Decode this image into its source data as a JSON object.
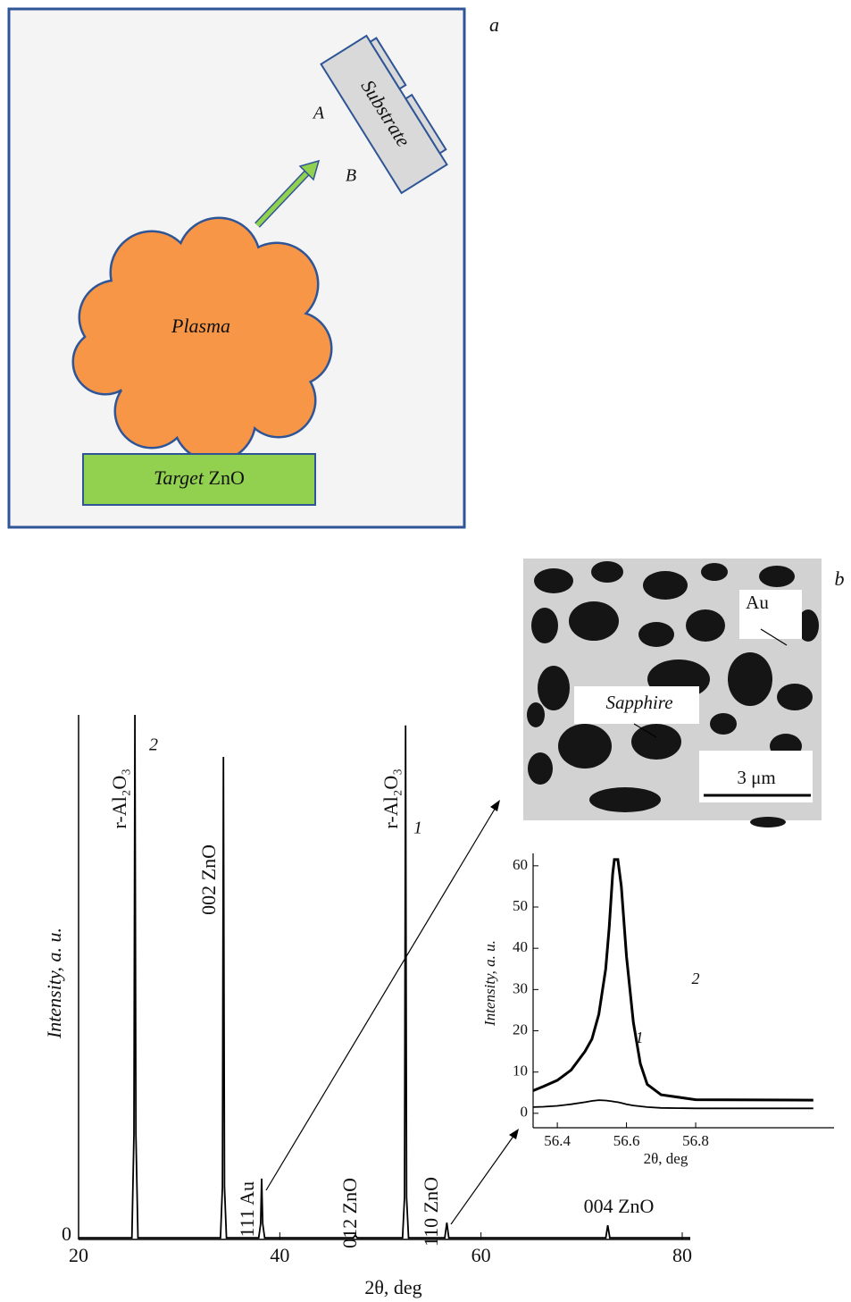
{
  "panel_a": {
    "label": "a",
    "substrate": "Substrate",
    "electrode_a": "A",
    "electrode_b": "B",
    "plasma": "Plasma",
    "target_word": "Target",
    "target_material": "ZnO"
  },
  "panel_b": {
    "label": "b",
    "au": "Au",
    "sapphire": "Sapphire",
    "scale": "3 μm"
  },
  "chart_data": [
    {
      "type": "line",
      "xlabel": "2θ, deg",
      "ylabel": "Intensity, a. u.",
      "x": [
        20,
        25.3,
        25.5,
        25.6,
        25.7,
        25.9,
        34.1,
        34.3,
        34.4,
        34.5,
        34.7,
        37.9,
        38.1,
        38.2,
        38.3,
        38.5,
        47.3,
        47.5,
        47.7,
        52.2,
        52.4,
        52.5,
        52.6,
        52.8,
        56.4,
        56.6,
        56.8,
        72.4,
        72.6,
        72.8,
        80.8
      ],
      "series": [
        {
          "color": "#000000",
          "values": [
            0.3,
            0.3,
            20,
            100,
            20,
            0.3,
            0.3,
            10,
            92,
            10,
            0.3,
            0.3,
            3,
            11.6,
            3,
            0.3,
            0.3,
            0.8,
            0.3,
            0.3,
            8,
            98,
            8,
            0.3,
            0.3,
            3.2,
            0.3,
            0.3,
            2.7,
            0.3,
            0.3
          ]
        }
      ],
      "annotations": [
        "r-Al₂O₃",
        "2",
        "002 ZnO",
        "111 Au",
        "012 ZnO",
        "r-Al₂O₃",
        "1",
        "110 ZnO",
        "004 ZnO"
      ],
      "xlim": [
        20,
        80.8
      ],
      "ylim": [
        0,
        100
      ],
      "xticks": [
        20,
        40,
        60,
        80
      ],
      "yticks": [
        0
      ]
    },
    {
      "type": "line",
      "xlabel": "2θ, deg",
      "ylabel": "Intensity, a. u.",
      "x": [
        56.33,
        56.36,
        56.4,
        56.44,
        56.48,
        56.5,
        56.52,
        56.54,
        56.55,
        56.56,
        56.565,
        56.575,
        56.585,
        56.6,
        56.62,
        56.64,
        56.66,
        56.7,
        56.8,
        57.14
      ],
      "series": [
        {
          "color": "#000000",
          "values": [
            5.5,
            6.5,
            8,
            10.5,
            15,
            18,
            24,
            35,
            45,
            58,
            61.5,
            61.5,
            55,
            38,
            22,
            12,
            7,
            4.5,
            3.3,
            3.2
          ]
        },
        {
          "color": "#000000",
          "values": [
            1.5,
            1.6,
            1.8,
            2.2,
            2.7,
            3.0,
            3.2,
            3.1,
            3.0,
            2.9,
            2.8,
            2.7,
            2.5,
            2.2,
            1.9,
            1.7,
            1.5,
            1.3,
            1.2,
            1.2
          ]
        }
      ],
      "annotations": [
        "2",
        "1"
      ],
      "xlim": [
        56.33,
        57.2
      ],
      "ylim": [
        -3.5,
        63
      ],
      "xticks": [
        56.4,
        56.6,
        56.8
      ],
      "yticks": [
        0,
        10,
        20,
        30,
        40,
        50,
        60
      ]
    }
  ]
}
